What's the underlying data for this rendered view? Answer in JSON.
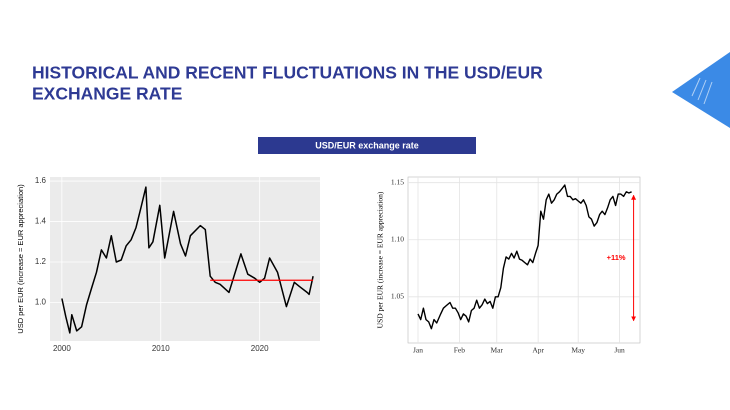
{
  "title": [
    "HISTORICAL AND RECENT FLUCTUATIONS IN THE USD/EUR",
    "EXCHANGE RATE"
  ],
  "banner": "USD/EUR exchange rate",
  "chart_data": [
    {
      "type": "line",
      "ylabel": "USD per EUR (increase = EUR appreciation)",
      "color": "#000000",
      "grid": true,
      "xlim": [
        1998.8,
        2026.1
      ],
      "ylim": [
        0.81,
        1.62
      ],
      "xticks": [
        2000,
        2010,
        2020
      ],
      "yticks": [
        {
          "value": 1,
          "label": "1.0"
        },
        1.2,
        1.4,
        1.6
      ],
      "x": [
        2000.0,
        2000.4,
        2000.8,
        2001.0,
        2001.5,
        2002.0,
        2002.5,
        2003.0,
        2003.5,
        2004.0,
        2004.5,
        2005.0,
        2005.5,
        2006.0,
        2006.5,
        2007.0,
        2007.5,
        2008.0,
        2008.5,
        2008.8,
        2009.2,
        2009.9,
        2010.4,
        2011.3,
        2012.0,
        2012.5,
        2013.0,
        2014.0,
        2014.5,
        2015.0,
        2015.5,
        2016.0,
        2016.9,
        2018.1,
        2018.8,
        2019.5,
        2020.0,
        2020.5,
        2021.0,
        2021.8,
        2022.7,
        2023.5,
        2024.0,
        2024.8,
        2025.0,
        2025.4
      ],
      "values": [
        1.02,
        0.93,
        0.85,
        0.94,
        0.86,
        0.88,
        0.99,
        1.07,
        1.15,
        1.26,
        1.22,
        1.33,
        1.2,
        1.21,
        1.28,
        1.31,
        1.37,
        1.47,
        1.57,
        1.27,
        1.3,
        1.48,
        1.22,
        1.45,
        1.29,
        1.23,
        1.33,
        1.38,
        1.36,
        1.13,
        1.1,
        1.09,
        1.05,
        1.24,
        1.14,
        1.12,
        1.1,
        1.12,
        1.22,
        1.15,
        0.98,
        1.1,
        1.08,
        1.05,
        1.04,
        1.13
      ],
      "reference_line": {
        "y": 1.11,
        "x": [
          2015,
          2025.4
        ],
        "color": "#ff0000"
      }
    },
    {
      "type": "line",
      "ylabel": "USD per EUR (increase = EUR appreciation)",
      "color": "#000000",
      "grid": true,
      "xlim": [
        -6.5,
        167.3
      ],
      "ylim": [
        1.0095,
        1.155
      ],
      "xticks": [
        {
          "value": 1,
          "label": "Jan"
        },
        {
          "value": 32,
          "label": "Feb"
        },
        {
          "value": 60,
          "label": "Mar"
        },
        {
          "value": 91,
          "label": "Apr"
        },
        {
          "value": 121,
          "label": "May"
        },
        {
          "value": 152,
          "label": "Jun"
        }
      ],
      "yticks": [
        1.05,
        {
          "value": 1.1,
          "label": "1.10"
        },
        1.15
      ],
      "x": [
        1,
        3,
        5,
        7,
        9,
        11,
        13,
        15,
        18,
        20,
        22,
        25,
        27,
        29,
        31,
        33,
        35,
        37,
        39,
        41,
        43,
        45,
        47,
        49,
        51,
        53,
        55,
        57,
        59,
        61,
        63,
        65,
        67,
        69,
        71,
        73,
        75,
        77,
        79,
        81,
        83,
        85,
        87,
        89,
        91,
        93,
        95,
        97,
        99,
        101,
        103,
        105,
        107,
        109,
        111,
        113,
        115,
        117,
        119,
        121,
        123,
        125,
        127,
        129,
        131,
        133,
        135,
        137,
        139,
        141,
        143,
        145,
        147,
        149,
        151,
        153,
        155,
        157,
        159,
        161
      ],
      "values": [
        1.035,
        1.03,
        1.04,
        1.03,
        1.028,
        1.022,
        1.03,
        1.027,
        1.035,
        1.04,
        1.042,
        1.045,
        1.04,
        1.04,
        1.036,
        1.03,
        1.035,
        1.033,
        1.028,
        1.038,
        1.04,
        1.047,
        1.04,
        1.043,
        1.048,
        1.044,
        1.046,
        1.04,
        1.05,
        1.05,
        1.058,
        1.075,
        1.085,
        1.083,
        1.088,
        1.084,
        1.09,
        1.083,
        1.082,
        1.08,
        1.078,
        1.083,
        1.08,
        1.088,
        1.095,
        1.125,
        1.118,
        1.135,
        1.14,
        1.132,
        1.135,
        1.14,
        1.142,
        1.145,
        1.148,
        1.138,
        1.138,
        1.135,
        1.136,
        1.134,
        1.132,
        1.135,
        1.13,
        1.12,
        1.118,
        1.112,
        1.115,
        1.122,
        1.125,
        1.122,
        1.128,
        1.135,
        1.138,
        1.13,
        1.14,
        1.14,
        1.138,
        1.142,
        1.141,
        1.142
      ],
      "annotation": {
        "text": "+11%",
        "x": 162.5,
        "y": [
          1.029,
          1.139
        ],
        "color": "#ff0000"
      }
    }
  ]
}
